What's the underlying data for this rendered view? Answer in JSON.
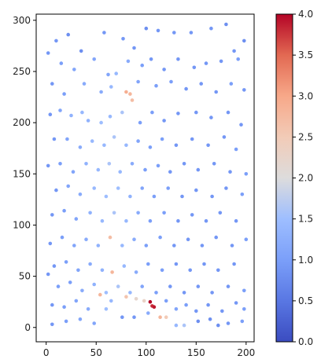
{
  "chart_data": {
    "type": "scatter",
    "title": "",
    "xlabel": "",
    "ylabel": "",
    "xlim": [
      -10,
      208
    ],
    "ylim": [
      -14,
      306
    ],
    "x_ticks": [
      0,
      50,
      100,
      150,
      200
    ],
    "y_ticks": [
      0,
      50,
      100,
      150,
      200,
      250,
      300
    ],
    "x_tick_labels": [
      "0",
      "50",
      "100",
      "150",
      "200"
    ],
    "y_tick_labels": [
      "0",
      "50",
      "100",
      "150",
      "200",
      "250",
      "300"
    ],
    "colorbar": {
      "colormap": "coolwarm",
      "range": [
        0.0,
        4.0
      ],
      "ticks": [
        0.0,
        0.5,
        1.0,
        1.5,
        2.0,
        2.5,
        3.0,
        3.5,
        4.0
      ],
      "tick_labels": [
        "0.0",
        "0.5",
        "1.0",
        "1.5",
        "2.0",
        "2.5",
        "3.0",
        "3.5",
        "4.0"
      ],
      "low_color": "#3b4cc0",
      "mid_color": "#dddcdc",
      "high_color": "#b40426"
    },
    "grid": false,
    "points": [
      [
        10,
        280,
        0.9
      ],
      [
        22,
        286,
        0.8
      ],
      [
        35,
        270,
        0.8
      ],
      [
        58,
        288,
        0.9
      ],
      [
        77,
        282,
        0.9
      ],
      [
        88,
        273,
        0.9
      ],
      [
        100,
        292,
        0.8
      ],
      [
        112,
        290,
        0.9
      ],
      [
        128,
        288,
        0.9
      ],
      [
        145,
        288,
        0.9
      ],
      [
        165,
        292,
        0.9
      ],
      [
        180,
        296,
        0.8
      ],
      [
        188,
        270,
        0.9
      ],
      [
        198,
        280,
        0.8
      ],
      [
        2,
        268,
        0.9
      ],
      [
        15,
        258,
        1.0
      ],
      [
        28,
        252,
        1.1
      ],
      [
        48,
        262,
        1.1
      ],
      [
        62,
        247,
        1.1
      ],
      [
        70,
        248,
        1.4
      ],
      [
        82,
        260,
        1.2
      ],
      [
        96,
        256,
        1.0
      ],
      [
        105,
        262,
        0.9
      ],
      [
        118,
        252,
        0.9
      ],
      [
        132,
        262,
        0.9
      ],
      [
        148,
        254,
        0.9
      ],
      [
        160,
        258,
        0.9
      ],
      [
        175,
        260,
        0.9
      ],
      [
        192,
        262,
        1.0
      ],
      [
        6,
        238,
        0.9
      ],
      [
        18,
        228,
        1.0
      ],
      [
        38,
        238,
        1.2
      ],
      [
        55,
        230,
        1.2
      ],
      [
        65,
        235,
        1.4
      ],
      [
        80,
        230,
        2.9
      ],
      [
        84,
        228,
        2.8
      ],
      [
        86,
        222,
        2.7
      ],
      [
        92,
        240,
        1.1
      ],
      [
        110,
        236,
        1.0
      ],
      [
        125,
        240,
        1.0
      ],
      [
        140,
        233,
        0.9
      ],
      [
        155,
        238,
        0.9
      ],
      [
        170,
        230,
        0.9
      ],
      [
        185,
        238,
        1.0
      ],
      [
        198,
        232,
        0.9
      ],
      [
        4,
        208,
        0.9
      ],
      [
        14,
        212,
        1.1
      ],
      [
        25,
        207,
        1.3
      ],
      [
        36,
        210,
        1.4
      ],
      [
        42,
        202,
        1.3
      ],
      [
        55,
        200,
        1.5
      ],
      [
        64,
        206,
        1.4
      ],
      [
        76,
        210,
        1.6
      ],
      [
        94,
        200,
        1.0
      ],
      [
        106,
        210,
        1.0
      ],
      [
        118,
        202,
        0.9
      ],
      [
        132,
        209,
        0.9
      ],
      [
        150,
        210,
        0.9
      ],
      [
        165,
        205,
        0.9
      ],
      [
        182,
        210,
        0.9
      ],
      [
        195,
        198,
        0.9
      ],
      [
        8,
        184,
        0.9
      ],
      [
        21,
        184,
        1.1
      ],
      [
        34,
        176,
        1.2
      ],
      [
        46,
        182,
        1.4
      ],
      [
        58,
        178,
        1.4
      ],
      [
        68,
        186,
        1.6
      ],
      [
        80,
        178,
        1.4
      ],
      [
        92,
        182,
        1.1
      ],
      [
        104,
        176,
        1.0
      ],
      [
        116,
        184,
        1.0
      ],
      [
        130,
        178,
        0.9
      ],
      [
        146,
        184,
        0.9
      ],
      [
        162,
        178,
        0.9
      ],
      [
        178,
        186,
        0.9
      ],
      [
        190,
        174,
        1.0
      ],
      [
        2,
        158,
        0.9
      ],
      [
        14,
        160,
        1.0
      ],
      [
        27,
        152,
        1.1
      ],
      [
        40,
        160,
        1.3
      ],
      [
        52,
        154,
        1.4
      ],
      [
        63,
        160,
        1.6
      ],
      [
        74,
        152,
        1.4
      ],
      [
        86,
        160,
        1.2
      ],
      [
        99,
        154,
        1.0
      ],
      [
        112,
        158,
        1.0
      ],
      [
        124,
        152,
        0.9
      ],
      [
        138,
        160,
        0.9
      ],
      [
        152,
        154,
        0.9
      ],
      [
        168,
        160,
        0.9
      ],
      [
        184,
        152,
        0.9
      ],
      [
        200,
        150,
        1.0
      ],
      [
        10,
        134,
        0.9
      ],
      [
        22,
        138,
        1.1
      ],
      [
        34,
        130,
        1.2
      ],
      [
        48,
        136,
        1.4
      ],
      [
        60,
        128,
        1.5
      ],
      [
        72,
        136,
        1.5
      ],
      [
        84,
        128,
        1.3
      ],
      [
        96,
        136,
        1.1
      ],
      [
        108,
        128,
        1.0
      ],
      [
        122,
        136,
        1.0
      ],
      [
        136,
        128,
        0.9
      ],
      [
        150,
        134,
        0.9
      ],
      [
        166,
        128,
        0.9
      ],
      [
        180,
        136,
        0.9
      ],
      [
        196,
        130,
        1.0
      ],
      [
        6,
        110,
        0.9
      ],
      [
        18,
        114,
        1.0
      ],
      [
        30,
        106,
        1.1
      ],
      [
        44,
        112,
        1.3
      ],
      [
        56,
        104,
        1.4
      ],
      [
        68,
        112,
        1.6
      ],
      [
        80,
        104,
        1.4
      ],
      [
        92,
        112,
        1.2
      ],
      [
        104,
        104,
        1.0
      ],
      [
        118,
        112,
        1.0
      ],
      [
        132,
        104,
        0.9
      ],
      [
        146,
        110,
        0.9
      ],
      [
        160,
        104,
        0.9
      ],
      [
        174,
        112,
        0.9
      ],
      [
        190,
        104,
        0.9
      ],
      [
        4,
        82,
        0.9
      ],
      [
        16,
        88,
        1.0
      ],
      [
        28,
        80,
        1.1
      ],
      [
        40,
        86,
        1.2
      ],
      [
        52,
        80,
        1.3
      ],
      [
        64,
        88,
        2.7
      ],
      [
        76,
        80,
        1.4
      ],
      [
        88,
        86,
        1.2
      ],
      [
        100,
        80,
        1.0
      ],
      [
        114,
        88,
        1.0
      ],
      [
        128,
        80,
        0.9
      ],
      [
        142,
        86,
        0.9
      ],
      [
        156,
        80,
        0.9
      ],
      [
        170,
        88,
        0.9
      ],
      [
        186,
        80,
        0.9
      ],
      [
        200,
        86,
        1.0
      ],
      [
        8,
        60,
        0.9
      ],
      [
        20,
        64,
        1.0
      ],
      [
        32,
        56,
        1.1
      ],
      [
        44,
        62,
        1.2
      ],
      [
        56,
        56,
        1.3
      ],
      [
        66,
        54,
        2.8
      ],
      [
        78,
        60,
        1.4
      ],
      [
        90,
        54,
        1.2
      ],
      [
        102,
        62,
        1.0
      ],
      [
        116,
        56,
        1.0
      ],
      [
        130,
        62,
        0.9
      ],
      [
        144,
        56,
        0.9
      ],
      [
        158,
        62,
        0.9
      ],
      [
        172,
        56,
        0.9
      ],
      [
        188,
        62,
        0.9
      ],
      [
        2,
        52,
        0.9
      ],
      [
        12,
        40,
        1.0
      ],
      [
        24,
        44,
        1.0
      ],
      [
        36,
        36,
        1.2
      ],
      [
        48,
        42,
        1.3
      ],
      [
        60,
        34,
        1.5
      ],
      [
        72,
        40,
        1.6
      ],
      [
        84,
        34,
        1.4
      ],
      [
        96,
        40,
        1.1
      ],
      [
        110,
        34,
        1.0
      ],
      [
        124,
        40,
        0.9
      ],
      [
        138,
        34,
        0.9
      ],
      [
        152,
        40,
        0.9
      ],
      [
        166,
        34,
        0.9
      ],
      [
        182,
        40,
        0.9
      ],
      [
        198,
        36,
        1.0
      ],
      [
        6,
        22,
        0.9
      ],
      [
        18,
        20,
        1.0
      ],
      [
        30,
        26,
        1.1
      ],
      [
        42,
        18,
        1.2
      ],
      [
        54,
        32,
        2.8
      ],
      [
        80,
        30,
        2.6
      ],
      [
        90,
        28,
        2.2
      ],
      [
        98,
        26,
        2.3
      ],
      [
        104,
        25,
        4.0
      ],
      [
        106,
        21,
        3.8
      ],
      [
        108,
        20,
        3.9
      ],
      [
        120,
        26,
        1.0
      ],
      [
        130,
        18,
        1.1
      ],
      [
        140,
        22,
        1.0
      ],
      [
        150,
        16,
        0.9
      ],
      [
        162,
        22,
        0.9
      ],
      [
        176,
        16,
        0.9
      ],
      [
        190,
        24,
        0.9
      ],
      [
        198,
        18,
        1.0
      ],
      [
        6,
        3,
        0.9
      ],
      [
        20,
        6,
        1.0
      ],
      [
        34,
        8,
        1.1
      ],
      [
        48,
        4,
        1.1
      ],
      [
        76,
        10,
        0.9
      ],
      [
        88,
        10,
        0.9
      ],
      [
        114,
        10,
        2.8
      ],
      [
        120,
        10,
        2.5
      ],
      [
        130,
        2,
        1.4
      ],
      [
        138,
        2,
        1.6
      ],
      [
        152,
        6,
        0.8
      ],
      [
        164,
        8,
        0.8
      ],
      [
        172,
        2,
        0.8
      ],
      [
        182,
        4,
        0.9
      ],
      [
        196,
        6,
        1.0
      ],
      [
        102,
        14,
        1.2
      ],
      [
        65,
        26,
        1.4
      ],
      [
        60,
        18,
        1.5
      ]
    ]
  }
}
